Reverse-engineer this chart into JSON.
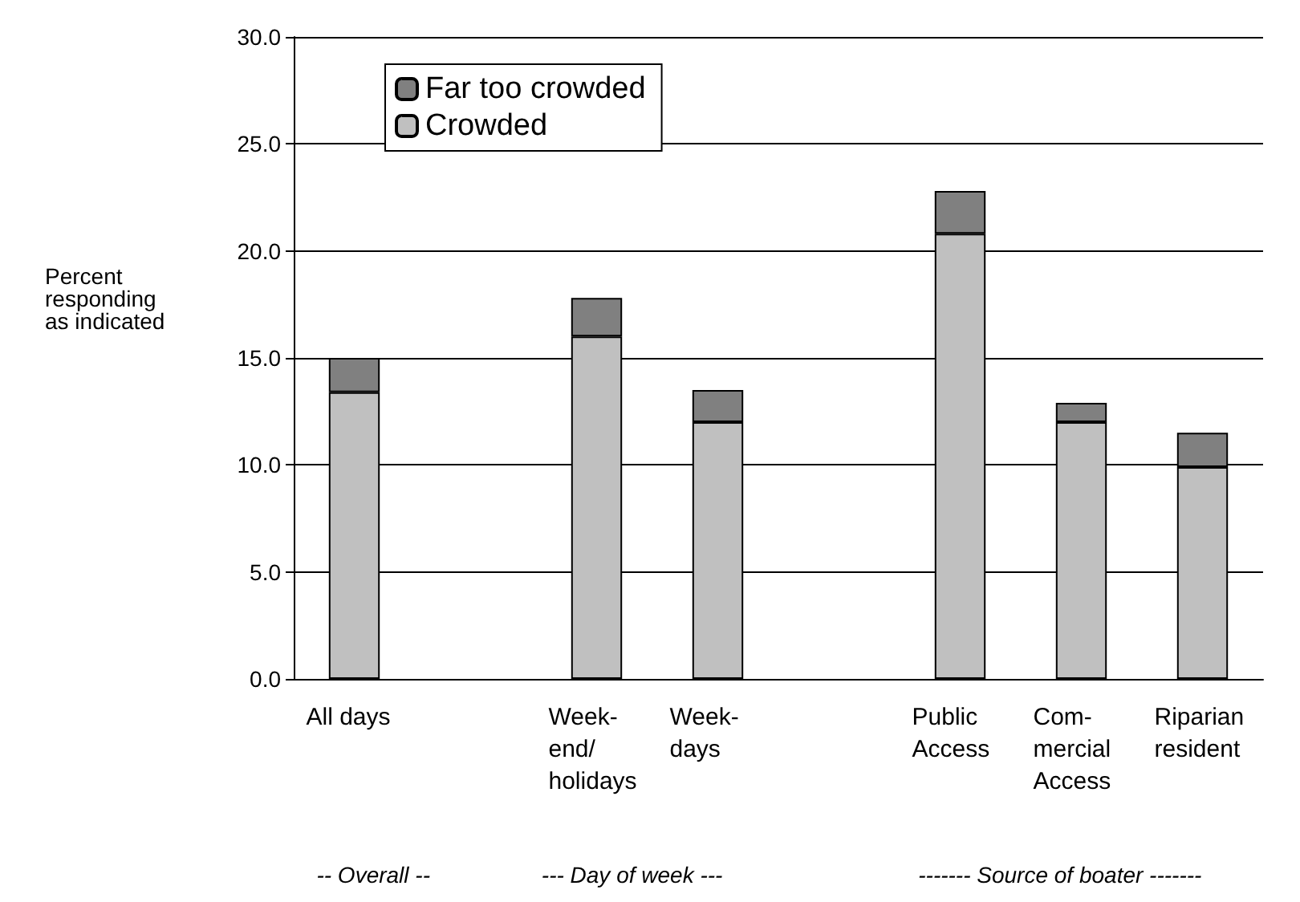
{
  "chart_data": {
    "type": "bar",
    "stacked": true,
    "ylabel": "Percent\nresponding\nas indicated",
    "categories": [
      "All days",
      null,
      "Week-\nend/\nholidays",
      "Week-\ndays",
      null,
      "Public\nAccess",
      "Com-\nmercial\nAccess",
      "Riparian\nresident"
    ],
    "series": [
      {
        "name": "Crowded",
        "color": "#c0c0c0",
        "values": [
          13.4,
          null,
          16.0,
          12.0,
          null,
          20.8,
          12.0,
          9.9
        ]
      },
      {
        "name": "Far too crowded",
        "color": "#808080",
        "values": [
          1.6,
          null,
          1.8,
          1.5,
          null,
          2.0,
          0.9,
          1.6
        ]
      }
    ],
    "ylim": [
      0,
      30
    ],
    "yticks": [
      {
        "value": 0,
        "label": "0.0"
      },
      {
        "value": 5,
        "label": "5.0"
      },
      {
        "value": 10,
        "label": "10.0"
      },
      {
        "value": 15,
        "label": "15.0"
      },
      {
        "value": 20,
        "label": "20.0"
      },
      {
        "value": 25,
        "label": "25.0"
      },
      {
        "value": 30,
        "label": "30.0"
      }
    ],
    "grid": "y",
    "legend": "top left",
    "annotations": [
      "-- Overall --",
      "--- Day of week ---",
      "------- Source of boater -------"
    ]
  }
}
